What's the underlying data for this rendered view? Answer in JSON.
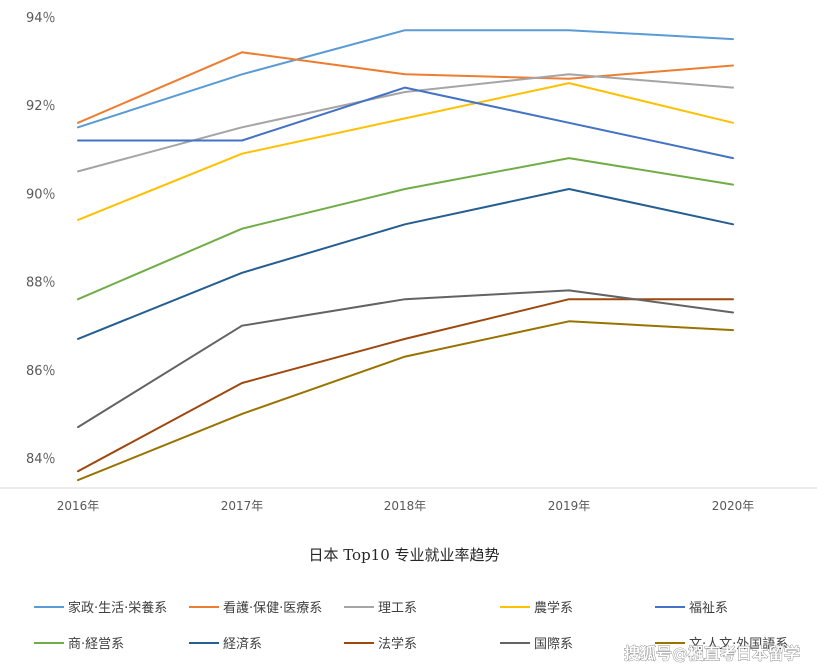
{
  "chart_data": {
    "type": "line",
    "title": "日本 Top10 专业就业率趋势",
    "x": [
      "2016年",
      "2017年",
      "2018年",
      "2019年",
      "2020年"
    ],
    "y_ticks": [
      "84％",
      "86％",
      "88％",
      "90％",
      "92％",
      "94％"
    ],
    "ylim": [
      83.6,
      94.4
    ],
    "xlabel": "",
    "ylabel": "",
    "grid": false,
    "legend_position": "bottom",
    "series": [
      {
        "name": "家政·生活·栄養系",
        "color": "#5b9bd5",
        "values": [
          91.5,
          92.7,
          93.7,
          93.7,
          93.5
        ]
      },
      {
        "name": "看護·保健·医療系",
        "color": "#ed7d31",
        "values": [
          91.6,
          93.2,
          92.7,
          92.6,
          92.9
        ]
      },
      {
        "name": "理工系",
        "color": "#a5a5a5",
        "values": [
          90.5,
          91.5,
          92.3,
          92.7,
          92.4
        ]
      },
      {
        "name": "農学系",
        "color": "#ffc000",
        "values": [
          89.4,
          90.9,
          91.7,
          92.5,
          91.6
        ]
      },
      {
        "name": "福祉系",
        "color": "#4472c4",
        "values": [
          91.2,
          91.2,
          92.4,
          91.6,
          90.8
        ]
      },
      {
        "name": "商·経営系",
        "color": "#70ad47",
        "values": [
          87.6,
          89.2,
          90.1,
          90.8,
          90.2
        ]
      },
      {
        "name": "経済系",
        "color": "#255e91",
        "values": [
          86.7,
          88.2,
          89.3,
          90.1,
          89.3
        ]
      },
      {
        "name": "法学系",
        "color": "#9e480e",
        "values": [
          83.7,
          85.7,
          86.7,
          87.6,
          87.6
        ]
      },
      {
        "name": "国際系",
        "color": "#636363",
        "values": [
          84.7,
          87.0,
          87.6,
          87.8,
          87.3
        ]
      },
      {
        "name": "文·人文·外国語系",
        "color": "#997300",
        "values": [
          83.5,
          85.0,
          86.3,
          87.1,
          86.9
        ]
      }
    ]
  },
  "watermark": "搜狐号@襁直考日本留学"
}
